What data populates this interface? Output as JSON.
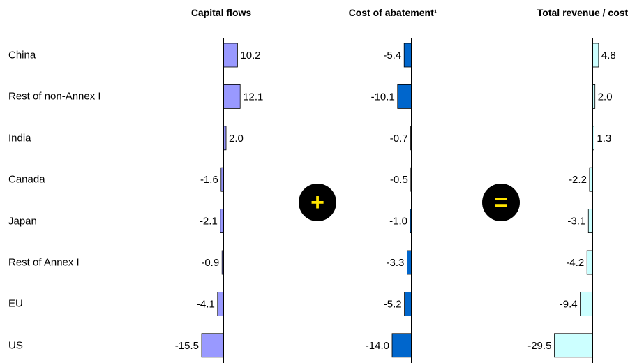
{
  "chart_data": {
    "type": "bar",
    "orientation": "horizontal",
    "categories": [
      "China",
      "Rest of non-Annex I",
      "India",
      "Canada",
      "Japan",
      "Rest of Annex I",
      "EU",
      "US"
    ],
    "panels": [
      {
        "title": "Capital flows",
        "values": [
          10.2,
          12.1,
          2.0,
          -1.6,
          -2.1,
          -0.9,
          -4.1,
          -15.5
        ],
        "color": "#9999ff"
      },
      {
        "title": "Cost of abatement¹",
        "values": [
          -5.4,
          -10.1,
          -0.7,
          -0.5,
          -1.0,
          -3.3,
          -5.2,
          -14.0
        ],
        "color": "#0066cc"
      },
      {
        "title": "Total revenue / cost",
        "values": [
          4.8,
          2.0,
          1.3,
          -2.2,
          -3.1,
          -4.2,
          -9.4,
          -29.5
        ],
        "color": "#ccffff"
      }
    ],
    "operators": [
      "+",
      "="
    ]
  }
}
